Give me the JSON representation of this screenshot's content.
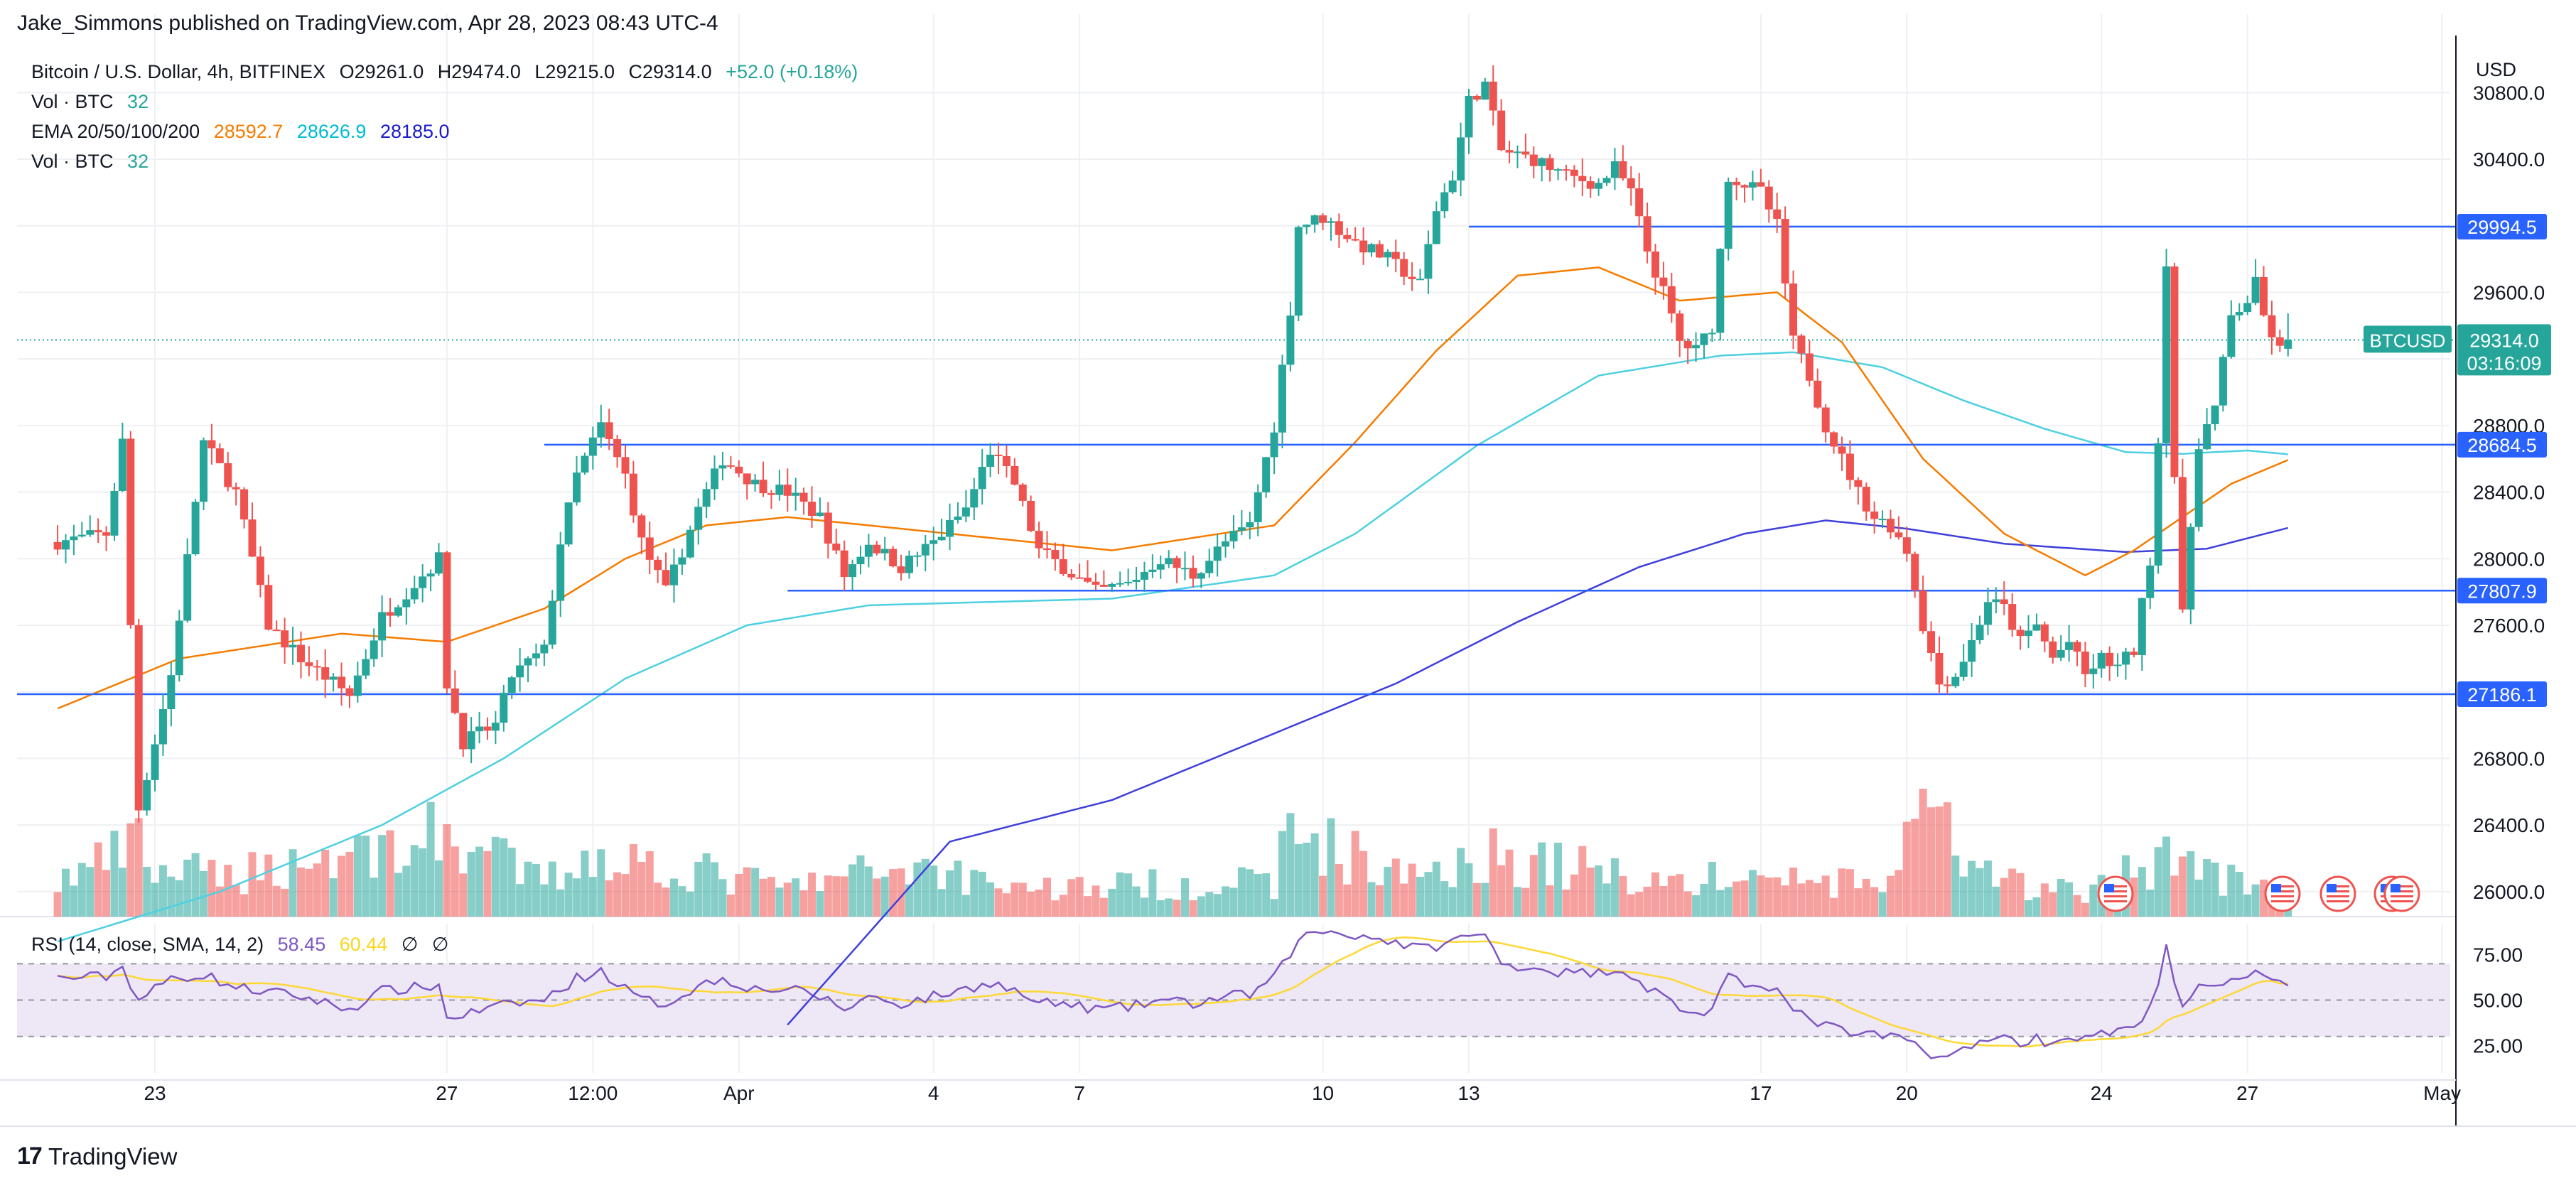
{
  "header": {
    "publisher_line": "Jake_Simmons published on TradingView.com, Apr 28, 2023 08:43 UTC-4"
  },
  "legend": {
    "symbol": "Bitcoin / U.S. Dollar, 4h, BITFINEX",
    "open": "O29261.0",
    "high": "H29474.0",
    "low": "L29215.0",
    "close": "C29314.0",
    "change": "+52.0 (+0.18%)",
    "vol_label": "Vol · BTC",
    "vol_value": "32",
    "ema_label": "EMA 20/50/100/200",
    "ema20": "28592.7",
    "ema50": "28626.9",
    "ema100": "28185.0",
    "vol2_label": "Vol · BTC",
    "vol2_value": "32"
  },
  "rsi_legend": {
    "label": "RSI (14, close, SMA, 14, 2)",
    "rsi": "58.45",
    "sma": "60.44",
    "na1": "∅",
    "na2": "∅"
  },
  "brand": {
    "name": "TradingView",
    "icon": "tradingview-logo-icon"
  },
  "colors": {
    "up": "#26a69a",
    "down": "#ef5350",
    "ema20": "#f57c00",
    "ema50": "#4dd0e1",
    "ema100": "#3f3fdb",
    "hline": "#2962ff",
    "rsi": "#7e57c2",
    "rsi_sma": "#fdd835",
    "rsi_band": "#ede7f6",
    "price_tag": "#26a69a"
  },
  "chart_data": {
    "type": "candlestick",
    "title": "Bitcoin / U.S. Dollar, 4h, BITFINEX",
    "currency": "USD",
    "ylim": [
      25850,
      31100
    ],
    "yticks": [
      26000,
      26400,
      26800,
      27200,
      27600,
      28000,
      28400,
      28800,
      29200,
      29600,
      30000,
      30400,
      30800
    ],
    "ytick_labels": [
      "26000.0",
      "26400.0",
      "26800.0",
      "27200.0",
      "27600.0",
      "28000.0",
      "28400.0",
      "28800.0",
      "29200.0",
      "29600.0",
      "30000.0",
      "30400.0",
      "30800.0"
    ],
    "xlim_index": [
      -5,
      295
    ],
    "xticks": [
      {
        "label": "23",
        "i": 12
      },
      {
        "label": "27",
        "i": 48
      },
      {
        "label": "12:00",
        "i": 66
      },
      {
        "label": "Apr",
        "i": 84
      },
      {
        "label": "4",
        "i": 108
      },
      {
        "label": "7",
        "i": 126
      },
      {
        "label": "10",
        "i": 156
      },
      {
        "label": "13",
        "i": 174
      },
      {
        "label": "17",
        "i": 210
      },
      {
        "label": "20",
        "i": 228
      },
      {
        "label": "24",
        "i": 252
      },
      {
        "label": "27",
        "i": 270
      },
      {
        "label": "May",
        "i": 294
      },
      {
        "label": "4",
        "i": 312
      }
    ],
    "horizontal_levels": [
      {
        "price": 29994.5,
        "label": "29994.5",
        "start_index": 174
      },
      {
        "price": 28684.5,
        "label": "28684.5",
        "start_index": 60
      },
      {
        "price": 27807.9,
        "label": "27807.9",
        "start_index": 90
      },
      {
        "price": 27186.1,
        "label": "27186.1",
        "start_index": -5
      }
    ],
    "last_price": {
      "symbol": "BTCUSD",
      "price": 29314.0,
      "label": "29314.0",
      "countdown": "03:16:09"
    },
    "ema_last": {
      "ema20": 28592.7,
      "ema50": 28626.9,
      "ema100": 28185.0
    },
    "rsi": {
      "ylim": [
        10,
        92
      ],
      "yticks": [
        25,
        50,
        75
      ],
      "ytick_labels": [
        "25.00",
        "50.00",
        "75.00"
      ],
      "band": [
        30,
        70
      ],
      "last": 58.45,
      "sma_last": 60.44
    },
    "path_anchors": [
      [
        0,
        28100
      ],
      [
        6,
        28150
      ],
      [
        8,
        28700
      ],
      [
        10,
        26500
      ],
      [
        14,
        27300
      ],
      [
        18,
        28700
      ],
      [
        22,
        28400
      ],
      [
        26,
        27600
      ],
      [
        30,
        27400
      ],
      [
        36,
        27180
      ],
      [
        40,
        27650
      ],
      [
        44,
        27850
      ],
      [
        47,
        28000
      ],
      [
        48,
        27250
      ],
      [
        50,
        26900
      ],
      [
        54,
        27000
      ],
      [
        56,
        27300
      ],
      [
        60,
        27450
      ],
      [
        62,
        28100
      ],
      [
        64,
        28500
      ],
      [
        67,
        28800
      ],
      [
        70,
        28500
      ],
      [
        72,
        28100
      ],
      [
        75,
        27800
      ],
      [
        79,
        28300
      ],
      [
        82,
        28600
      ],
      [
        86,
        28450
      ],
      [
        90,
        28400
      ],
      [
        94,
        28250
      ],
      [
        97,
        27900
      ],
      [
        100,
        28100
      ],
      [
        104,
        27950
      ],
      [
        108,
        28100
      ],
      [
        112,
        28300
      ],
      [
        115,
        28650
      ],
      [
        118,
        28450
      ],
      [
        121,
        28050
      ],
      [
        124,
        27950
      ],
      [
        128,
        27800
      ],
      [
        132,
        27850
      ],
      [
        136,
        28000
      ],
      [
        140,
        27900
      ],
      [
        144,
        28100
      ],
      [
        147,
        28200
      ],
      [
        150,
        28800
      ],
      [
        152,
        29500
      ],
      [
        153,
        30000
      ],
      [
        156,
        30050
      ],
      [
        160,
        29900
      ],
      [
        164,
        29800
      ],
      [
        168,
        29650
      ],
      [
        170,
        30100
      ],
      [
        172,
        30300
      ],
      [
        174,
        30750
      ],
      [
        176,
        30850
      ],
      [
        178,
        30450
      ],
      [
        182,
        30400
      ],
      [
        186,
        30300
      ],
      [
        190,
        30250
      ],
      [
        192,
        30350
      ],
      [
        194,
        30200
      ],
      [
        196,
        29850
      ],
      [
        198,
        29600
      ],
      [
        200,
        29300
      ],
      [
        202,
        29250
      ],
      [
        204,
        29400
      ],
      [
        206,
        30300
      ],
      [
        208,
        30250
      ],
      [
        210,
        30200
      ],
      [
        212,
        30000
      ],
      [
        214,
        29300
      ],
      [
        216,
        29100
      ],
      [
        218,
        28800
      ],
      [
        220,
        28600
      ],
      [
        222,
        28400
      ],
      [
        224,
        28250
      ],
      [
        226,
        28200
      ],
      [
        228,
        28050
      ],
      [
        230,
        27600
      ],
      [
        232,
        27250
      ],
      [
        234,
        27300
      ],
      [
        236,
        27500
      ],
      [
        238,
        27750
      ],
      [
        240,
        27700
      ],
      [
        242,
        27500
      ],
      [
        244,
        27600
      ],
      [
        246,
        27400
      ],
      [
        248,
        27500
      ],
      [
        250,
        27300
      ],
      [
        252,
        27400
      ],
      [
        254,
        27350
      ],
      [
        256,
        27450
      ],
      [
        258,
        28000
      ],
      [
        259,
        28700
      ],
      [
        260,
        29800
      ],
      [
        261,
        28500
      ],
      [
        262,
        27650
      ],
      [
        263,
        28200
      ],
      [
        264,
        28700
      ],
      [
        266,
        28900
      ],
      [
        268,
        29450
      ],
      [
        270,
        29550
      ],
      [
        271,
        29650
      ],
      [
        272,
        29450
      ],
      [
        274,
        29250
      ],
      [
        275,
        29314
      ]
    ],
    "vol_anchors": [
      [
        0,
        30
      ],
      [
        8,
        55
      ],
      [
        10,
        60
      ],
      [
        12,
        40
      ],
      [
        20,
        35
      ],
      [
        48,
        70
      ],
      [
        60,
        30
      ],
      [
        66,
        55
      ],
      [
        90,
        25
      ],
      [
        105,
        45
      ],
      [
        120,
        25
      ],
      [
        150,
        30
      ],
      [
        152,
        75
      ],
      [
        156,
        65
      ],
      [
        165,
        35
      ],
      [
        175,
        55
      ],
      [
        200,
        30
      ],
      [
        210,
        35
      ],
      [
        225,
        25
      ],
      [
        230,
        100
      ],
      [
        236,
        35
      ],
      [
        250,
        20
      ],
      [
        259,
        50
      ],
      [
        261,
        65
      ],
      [
        263,
        45
      ],
      [
        275,
        15
      ]
    ],
    "rsi_anchors": [
      [
        0,
        62
      ],
      [
        6,
        63
      ],
      [
        8,
        68
      ],
      [
        10,
        50
      ],
      [
        14,
        62
      ],
      [
        18,
        64
      ],
      [
        22,
        57
      ],
      [
        30,
        52
      ],
      [
        36,
        45
      ],
      [
        40,
        55
      ],
      [
        47,
        58
      ],
      [
        48,
        40
      ],
      [
        52,
        44
      ],
      [
        56,
        48
      ],
      [
        60,
        50
      ],
      [
        64,
        62
      ],
      [
        67,
        66
      ],
      [
        70,
        56
      ],
      [
        72,
        50
      ],
      [
        75,
        48
      ],
      [
        79,
        58
      ],
      [
        82,
        62
      ],
      [
        86,
        56
      ],
      [
        90,
        56
      ],
      [
        94,
        52
      ],
      [
        97,
        45
      ],
      [
        100,
        52
      ],
      [
        104,
        48
      ],
      [
        108,
        52
      ],
      [
        112,
        56
      ],
      [
        115,
        60
      ],
      [
        118,
        55
      ],
      [
        121,
        48
      ],
      [
        124,
        48
      ],
      [
        128,
        45
      ],
      [
        132,
        46
      ],
      [
        136,
        50
      ],
      [
        140,
        48
      ],
      [
        144,
        52
      ],
      [
        147,
        53
      ],
      [
        150,
        62
      ],
      [
        152,
        76
      ],
      [
        153,
        84
      ],
      [
        156,
        88
      ],
      [
        160,
        86
      ],
      [
        164,
        83
      ],
      [
        168,
        78
      ],
      [
        170,
        80
      ],
      [
        172,
        82
      ],
      [
        174,
        86
      ],
      [
        176,
        85
      ],
      [
        178,
        70
      ],
      [
        182,
        68
      ],
      [
        186,
        65
      ],
      [
        190,
        65
      ],
      [
        192,
        68
      ],
      [
        194,
        64
      ],
      [
        196,
        57
      ],
      [
        198,
        52
      ],
      [
        200,
        46
      ],
      [
        202,
        42
      ],
      [
        204,
        45
      ],
      [
        206,
        62
      ],
      [
        208,
        58
      ],
      [
        210,
        60
      ],
      [
        212,
        56
      ],
      [
        214,
        43
      ],
      [
        216,
        40
      ],
      [
        218,
        36
      ],
      [
        220,
        33
      ],
      [
        222,
        31
      ],
      [
        224,
        30
      ],
      [
        226,
        30
      ],
      [
        228,
        28
      ],
      [
        230,
        23
      ],
      [
        232,
        19
      ],
      [
        234,
        20
      ],
      [
        236,
        24
      ],
      [
        238,
        30
      ],
      [
        240,
        29
      ],
      [
        242,
        27
      ],
      [
        244,
        29
      ],
      [
        246,
        26
      ],
      [
        248,
        31
      ],
      [
        250,
        28
      ],
      [
        252,
        32
      ],
      [
        254,
        32
      ],
      [
        256,
        34
      ],
      [
        258,
        48
      ],
      [
        259,
        60
      ],
      [
        260,
        78
      ],
      [
        261,
        58
      ],
      [
        262,
        46
      ],
      [
        263,
        52
      ],
      [
        264,
        56
      ],
      [
        266,
        58
      ],
      [
        268,
        62
      ],
      [
        270,
        64
      ],
      [
        271,
        66
      ],
      [
        272,
        62
      ],
      [
        274,
        58
      ],
      [
        275,
        58.45
      ]
    ],
    "ema100_anchors": [
      [
        90,
        25200
      ],
      [
        110,
        26300
      ],
      [
        130,
        26550
      ],
      [
        150,
        26950
      ],
      [
        165,
        27250
      ],
      [
        180,
        27620
      ],
      [
        195,
        27950
      ],
      [
        208,
        28150
      ],
      [
        218,
        28230
      ],
      [
        228,
        28180
      ],
      [
        240,
        28090
      ],
      [
        255,
        28040
      ],
      [
        265,
        28060
      ],
      [
        275,
        28185
      ]
    ],
    "ema50_anchors": [
      [
        0,
        25700
      ],
      [
        20,
        26000
      ],
      [
        40,
        26400
      ],
      [
        55,
        26800
      ],
      [
        70,
        27280
      ],
      [
        85,
        27600
      ],
      [
        100,
        27720
      ],
      [
        130,
        27760
      ],
      [
        150,
        27900
      ],
      [
        160,
        28150
      ],
      [
        175,
        28680
      ],
      [
        190,
        29100
      ],
      [
        205,
        29220
      ],
      [
        214,
        29240
      ],
      [
        225,
        29150
      ],
      [
        235,
        28950
      ],
      [
        245,
        28780
      ],
      [
        255,
        28640
      ],
      [
        262,
        28630
      ],
      [
        270,
        28650
      ],
      [
        275,
        28626.9
      ]
    ],
    "ema20_anchors": [
      [
        0,
        27100
      ],
      [
        15,
        27400
      ],
      [
        35,
        27550
      ],
      [
        48,
        27500
      ],
      [
        60,
        27700
      ],
      [
        70,
        28000
      ],
      [
        80,
        28200
      ],
      [
        90,
        28250
      ],
      [
        110,
        28150
      ],
      [
        130,
        28050
      ],
      [
        150,
        28200
      ],
      [
        160,
        28700
      ],
      [
        170,
        29250
      ],
      [
        180,
        29700
      ],
      [
        190,
        29750
      ],
      [
        200,
        29550
      ],
      [
        212,
        29600
      ],
      [
        220,
        29300
      ],
      [
        230,
        28600
      ],
      [
        240,
        28150
      ],
      [
        250,
        27900
      ],
      [
        256,
        28050
      ],
      [
        262,
        28250
      ],
      [
        268,
        28450
      ],
      [
        275,
        28592.7
      ]
    ]
  }
}
